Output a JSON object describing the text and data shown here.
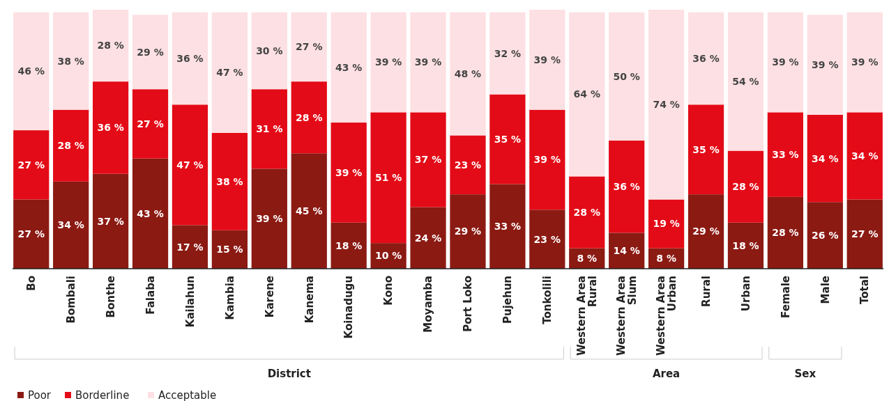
{
  "chart_data": {
    "type": "bar",
    "stacked": true,
    "legend": "bottom left",
    "categories": [
      "Bo",
      "Bombali",
      "Bonthe",
      "Falaba",
      "Kailahun",
      "Kambia",
      "Karene",
      "Kanema",
      "Koinadugu",
      "Kono",
      "Moyamba",
      "Port Loko",
      "Pujehun",
      "Tonkolili",
      "Western Area Rural",
      "Western Area Slum",
      "Western Area Urban",
      "Rural",
      "Urban",
      "Female",
      "Male",
      "Total"
    ],
    "ylim": [
      0,
      101
    ],
    "series": [
      {
        "name": "Poor",
        "color": "#8b1a13",
        "values": [
          27,
          34,
          37,
          43,
          17,
          15,
          39,
          45,
          18,
          10,
          24,
          29,
          33,
          23,
          8,
          14,
          8,
          29,
          18,
          28,
          26,
          27
        ],
        "value_labels": [
          "27 %",
          "34 %",
          "37 %",
          "43 %",
          "17 %",
          "15 %",
          "39 %",
          "45 %",
          "18 %",
          "10 %",
          "24 %",
          "29 %",
          "33 %",
          "23 %",
          "8 %",
          "14 %",
          "8 %",
          "29 %",
          "18 %",
          "28 %",
          "26 %",
          "27 %"
        ]
      },
      {
        "name": "Borderline",
        "color": "#e30b17",
        "values": [
          27,
          28,
          36,
          27,
          47,
          38,
          31,
          28,
          39,
          51,
          37,
          23,
          35,
          39,
          28,
          36,
          19,
          35,
          28,
          33,
          34,
          34
        ],
        "value_labels": [
          "27 %",
          "28 %",
          "36 %",
          "27 %",
          "47 %",
          "38 %",
          "31 %",
          "28 %",
          "39 %",
          "51 %",
          "37 %",
          "23 %",
          "35 %",
          "39 %",
          "28 %",
          "36 %",
          "19 %",
          "35 %",
          "28 %",
          "33 %",
          "34 %",
          "34 %"
        ]
      },
      {
        "name": "Acceptable",
        "color": "#fde0e3",
        "values": [
          46,
          38,
          28,
          29,
          36,
          47,
          30,
          27,
          43,
          39,
          39,
          48,
          32,
          39,
          64,
          50,
          74,
          36,
          54,
          39,
          39,
          39
        ],
        "value_labels": [
          "46 %",
          "38 %",
          "28 %",
          "29 %",
          "36 %",
          "47 %",
          "30 %",
          "27 %",
          "43 %",
          "39 %",
          "39 %",
          "48 %",
          "32 %",
          "39 %",
          "64 %",
          "50 %",
          "74 %",
          "36 %",
          "54 %",
          "39 %",
          "39 %",
          "39 %"
        ]
      }
    ],
    "annotations": [
      "District",
      "Area",
      "Sex"
    ]
  }
}
